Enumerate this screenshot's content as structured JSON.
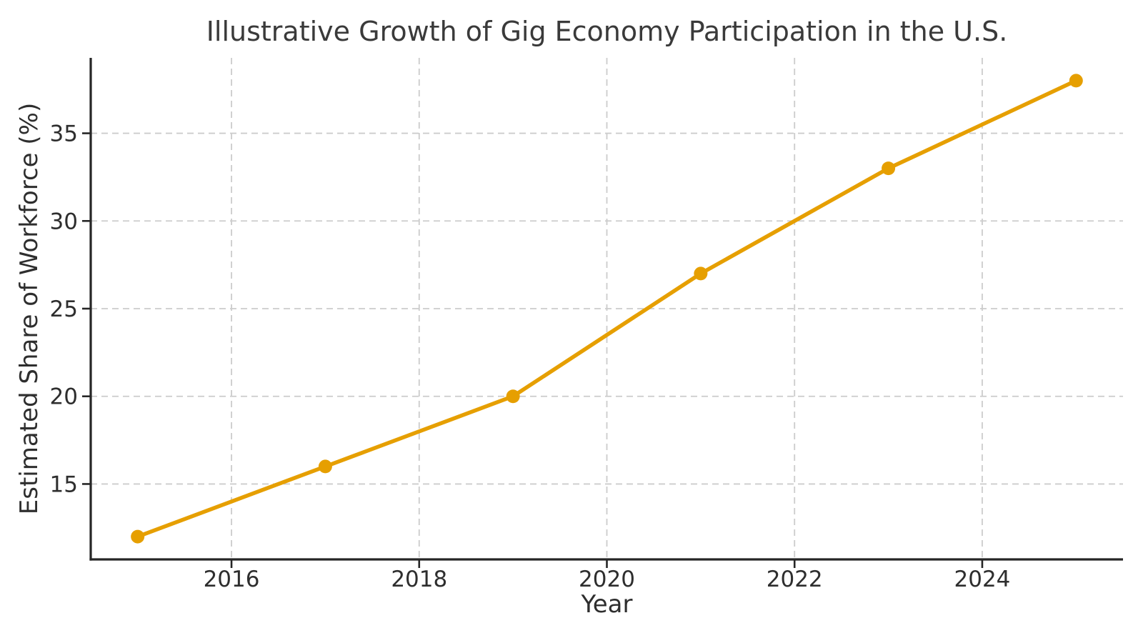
{
  "chart_data": {
    "type": "line",
    "title": "Illustrative Growth of Gig Economy Participation in the U.S.",
    "xlabel": "Year",
    "ylabel": "Estimated Share of Workforce (%)",
    "x": [
      2015,
      2017,
      2019,
      2021,
      2023,
      2025
    ],
    "values": [
      12,
      16,
      20,
      27,
      33,
      38
    ],
    "x_ticks": [
      2016,
      2018,
      2020,
      2022,
      2024
    ],
    "y_ticks": [
      15,
      20,
      25,
      30,
      35
    ],
    "xlim": [
      2014.5,
      2025.5
    ],
    "ylim": [
      10.7,
      39.3
    ],
    "grid": true,
    "grid_style": "dashed",
    "legend": false,
    "colors": {
      "line": "#E69F00",
      "marker": "#E69F00",
      "grid": "#cccccc",
      "axis": "#262626",
      "tick_text": "#2e2e2e",
      "title_text": "#3a3a3a",
      "background": "#ffffff"
    }
  }
}
